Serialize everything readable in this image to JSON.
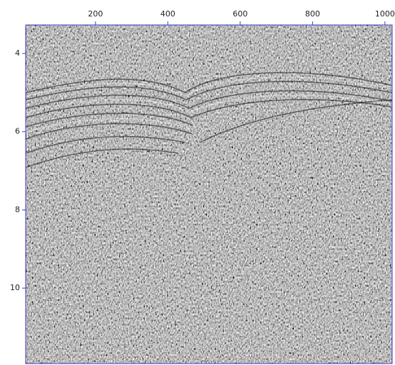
{
  "chart_data": {
    "type": "image",
    "xlim": [
      7,
      1020
    ],
    "xticks": [
      200,
      400,
      600,
      800,
      1000
    ],
    "ylim": [
      3.27,
      11.93
    ],
    "yticks": [
      4,
      6,
      8,
      10
    ],
    "y_inverted": true,
    "axis_color": "#3a3acc"
  }
}
